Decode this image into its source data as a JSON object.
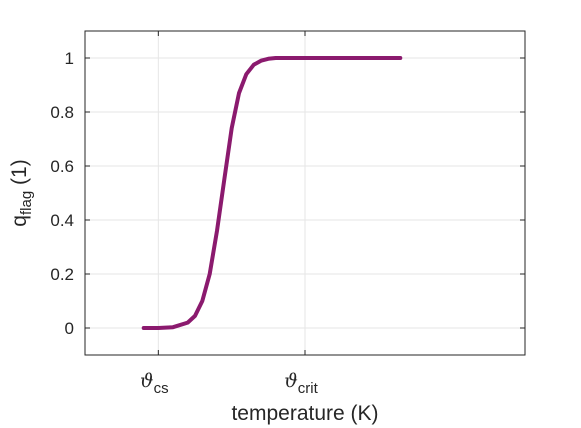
{
  "chart_data": {
    "type": "line",
    "xlabel": "temperature (K)",
    "ylabel": {
      "base": "q",
      "subscript": "flag",
      "unit": "(1)"
    },
    "ylim": [
      -0.1,
      1.1
    ],
    "yticks": [
      0,
      0.2,
      0.4,
      0.6,
      0.8,
      1
    ],
    "ytick_labels": [
      "0",
      "0.2",
      "0.4",
      "0.6",
      "0.8",
      "1"
    ],
    "xlim": [
      -0.5,
      2.5
    ],
    "xticks": [
      {
        "x": 0,
        "symbol": "ϑ",
        "subscript": "cs"
      },
      {
        "x": 1,
        "symbol": "ϑ",
        "subscript": "crit"
      }
    ],
    "grid": true,
    "series": [
      {
        "color": "#8b1a6e",
        "x": [
          -0.1,
          0,
          0.1,
          0.2,
          0.25,
          0.3,
          0.35,
          0.4,
          0.45,
          0.5,
          0.55,
          0.6,
          0.65,
          0.7,
          0.75,
          0.8,
          0.9,
          1.0,
          1.2,
          1.5,
          1.65
        ],
        "y": [
          0,
          0,
          0.003,
          0.02,
          0.045,
          0.1,
          0.2,
          0.36,
          0.55,
          0.74,
          0.87,
          0.94,
          0.975,
          0.99,
          0.997,
          1,
          1,
          1,
          1,
          1,
          1
        ]
      }
    ]
  }
}
